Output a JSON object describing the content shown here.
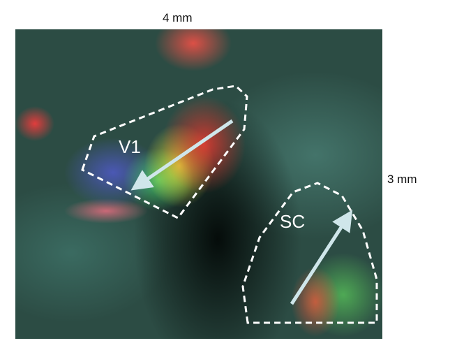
{
  "figure": {
    "scale_top": "4 mm",
    "scale_right": "3 mm",
    "regions": [
      {
        "label": "V1"
      },
      {
        "label": "SC"
      }
    ]
  }
}
